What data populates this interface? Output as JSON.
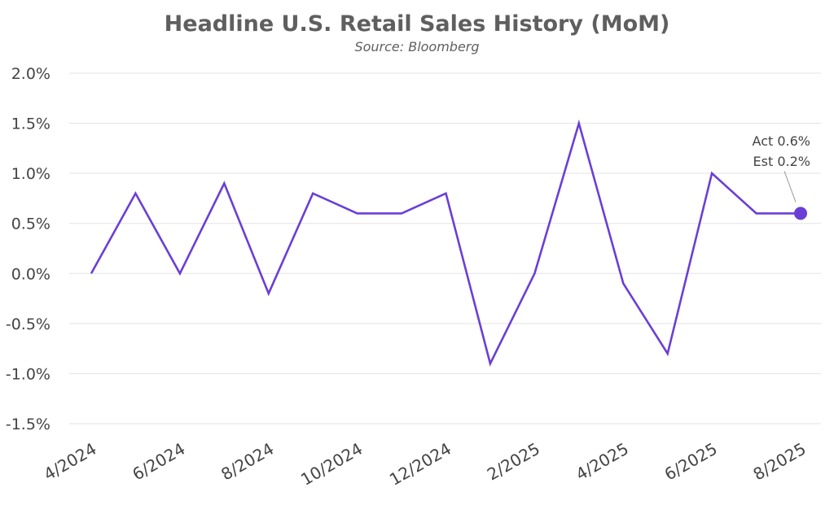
{
  "chart_data": {
    "type": "line",
    "title": "Headline U.S. Retail Sales History (MoM)",
    "subtitle": "Source: Bloomberg",
    "xlabel": "",
    "ylabel": "",
    "ylim": [
      -1.5,
      2.0
    ],
    "yticks": [
      "2.0%",
      "1.5%",
      "1.0%",
      "0.5%",
      "0.0%",
      "-0.5%",
      "-1.0%",
      "-1.5%"
    ],
    "ytick_values": [
      2.0,
      1.5,
      1.0,
      0.5,
      0.0,
      -0.5,
      -1.0,
      -1.5
    ],
    "x": [
      "4/2024",
      "5/2024",
      "6/2024",
      "7/2024",
      "8/2024",
      "9/2024",
      "10/2024",
      "11/2024",
      "12/2024",
      "1/2025",
      "2/2025",
      "3/2025",
      "4/2025",
      "5/2025",
      "6/2025",
      "7/2025",
      "8/2025"
    ],
    "xtick_labels": [
      "4/2024",
      "6/2024",
      "8/2024",
      "10/2024",
      "12/2024",
      "2/2025",
      "4/2025",
      "6/2025",
      "8/2025"
    ],
    "series": [
      {
        "values": [
          0.0,
          0.8,
          0.0,
          0.9,
          -0.2,
          0.8,
          0.6,
          0.6,
          0.8,
          -0.9,
          0.0,
          1.5,
          -0.1,
          -0.8,
          1.0,
          0.6,
          0.6
        ],
        "color": "#6a3fd6"
      }
    ],
    "grid": true,
    "legend": "none",
    "annotation": {
      "lines": [
        "Act 0.6%",
        "Est 0.2%"
      ],
      "target": "8/2025"
    }
  }
}
